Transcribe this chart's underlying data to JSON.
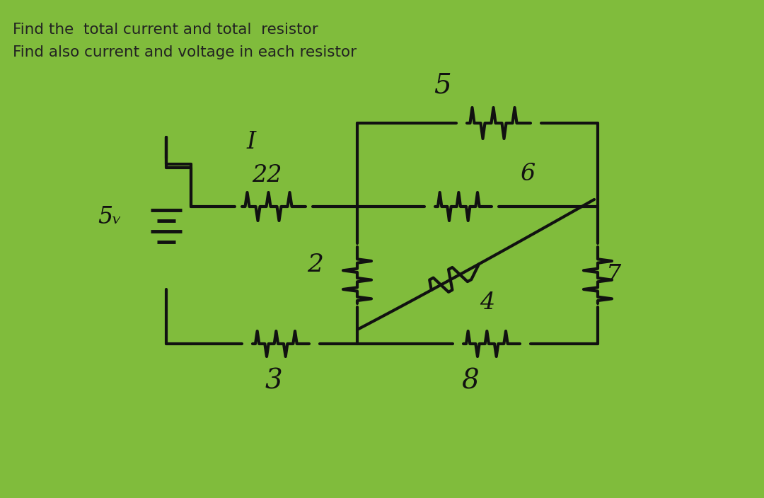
{
  "bg_color": "#80bc3c",
  "line_color": "#111111",
  "text_color": "#222222",
  "title_line1": "Find the  total current and total  resistor",
  "title_line2": "Find also current and voltage in each resistor",
  "title_fontsize": 15.5,
  "label_5V": "5ᵥ",
  "label_r1": "22",
  "label_r2": "5",
  "label_r3": "6",
  "label_r4": "2",
  "label_r5": "4",
  "label_r6": "3",
  "label_r7": "8",
  "label_r8": "7",
  "label_I": "I"
}
